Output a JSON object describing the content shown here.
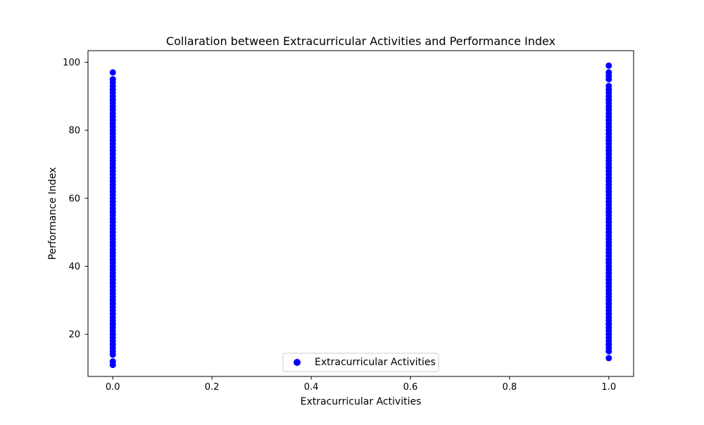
{
  "chart_data": {
    "type": "scatter",
    "title": "Collaration between Extracurricular Activities and Performance Index",
    "xlabel": "Extracurricular Activities",
    "ylabel": "Performance Index",
    "xlim": [
      -0.05,
      1.05
    ],
    "ylim": [
      7.6,
      103.4
    ],
    "xticks": [
      0.0,
      0.2,
      0.4,
      0.6,
      0.8,
      1.0
    ],
    "xtick_labels": [
      "0.0",
      "0.2",
      "0.4",
      "0.6",
      "0.8",
      "1.0"
    ],
    "yticks": [
      20,
      40,
      60,
      80,
      100
    ],
    "ytick_labels": [
      "20",
      "40",
      "60",
      "80",
      "100"
    ],
    "grid": false,
    "legend": {
      "position": "lower center",
      "entries": [
        "Extracurricular Activities"
      ]
    },
    "series": [
      {
        "name": "Extracurricular Activities",
        "color": "#0000ff",
        "marker": "circle",
        "points": [
          {
            "x": 0,
            "y_values": [
              11,
              12,
              14,
              15,
              16,
              17,
              18,
              19,
              20,
              21,
              22,
              23,
              24,
              25,
              26,
              27,
              28,
              29,
              30,
              31,
              32,
              33,
              34,
              35,
              36,
              37,
              38,
              39,
              40,
              41,
              42,
              43,
              44,
              45,
              46,
              47,
              48,
              49,
              50,
              51,
              52,
              53,
              54,
              55,
              56,
              57,
              58,
              59,
              60,
              61,
              62,
              63,
              64,
              65,
              66,
              67,
              68,
              69,
              70,
              71,
              72,
              73,
              74,
              75,
              76,
              77,
              78,
              79,
              80,
              81,
              82,
              83,
              84,
              85,
              86,
              87,
              88,
              89,
              90,
              91,
              92,
              93,
              94,
              95,
              97
            ]
          },
          {
            "x": 1,
            "y_values": [
              13,
              15,
              16,
              17,
              18,
              19,
              20,
              21,
              22,
              23,
              24,
              25,
              26,
              27,
              28,
              29,
              30,
              31,
              32,
              33,
              34,
              35,
              36,
              37,
              38,
              39,
              40,
              41,
              42,
              43,
              44,
              45,
              46,
              47,
              48,
              49,
              50,
              51,
              52,
              53,
              54,
              55,
              56,
              57,
              58,
              59,
              60,
              61,
              62,
              63,
              64,
              65,
              66,
              67,
              68,
              69,
              70,
              71,
              72,
              73,
              74,
              75,
              76,
              77,
              78,
              79,
              80,
              81,
              82,
              83,
              84,
              85,
              86,
              87,
              88,
              89,
              90,
              91,
              92,
              93,
              95,
              96,
              97,
              99
            ]
          }
        ]
      }
    ]
  }
}
